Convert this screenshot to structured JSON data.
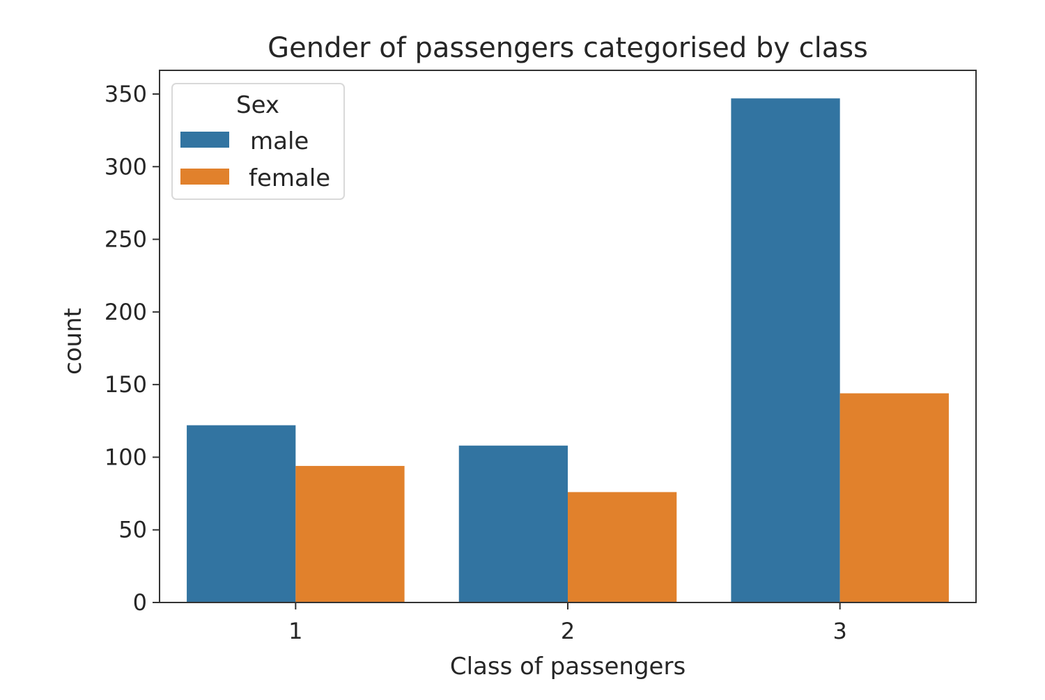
{
  "chart_data": {
    "type": "bar",
    "title": "Gender of passengers categorised by class",
    "xlabel": "Class of passengers",
    "ylabel": "count",
    "categories": [
      "1",
      "2",
      "3"
    ],
    "series": [
      {
        "name": "male",
        "values": [
          122,
          108,
          347
        ]
      },
      {
        "name": "female",
        "values": [
          94,
          76,
          144
        ]
      }
    ],
    "ylim": [
      0,
      350
    ],
    "yticks": [
      "0",
      "50",
      "100",
      "150",
      "200",
      "250",
      "300",
      "350"
    ],
    "yticks_values": [
      0,
      50,
      100,
      150,
      200,
      250,
      300,
      350
    ],
    "legend": {
      "title": "Sex",
      "placement": "top-left"
    },
    "grid": false,
    "colors": {
      "male": "#3274a1",
      "female": "#e1812c",
      "axes": "#333333"
    }
  }
}
